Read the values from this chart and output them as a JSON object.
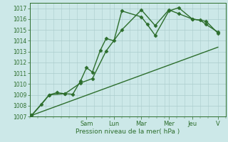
{
  "background_color": "#cce8e8",
  "grid_color": "#aacccc",
  "line_color": "#2d6e2d",
  "marker_color": "#2d6e2d",
  "xlabel": "Pression niveau de la mer( hPa )",
  "ylim": [
    1007,
    1017.5
  ],
  "yticks": [
    1007,
    1008,
    1009,
    1010,
    1011,
    1012,
    1013,
    1014,
    1015,
    1016,
    1017
  ],
  "day_labels": [
    "Sam",
    "Lun",
    "Mar",
    "Mer",
    "Jeu",
    "V"
  ],
  "day_x": [
    0.29,
    0.43,
    0.57,
    0.71,
    0.83,
    0.96
  ],
  "minor_x": [
    0.0,
    0.04,
    0.08,
    0.12,
    0.16,
    0.2,
    0.24,
    0.29,
    0.33,
    0.37,
    0.41,
    0.43,
    0.47,
    0.51,
    0.55,
    0.57,
    0.61,
    0.65,
    0.69,
    0.71,
    0.75,
    0.79,
    0.83,
    0.87,
    0.91,
    0.96,
    1.0
  ],
  "series": [
    {
      "x": [
        0.01,
        0.06,
        0.1,
        0.14,
        0.18,
        0.22,
        0.26,
        0.29,
        0.32,
        0.36,
        0.39,
        0.43,
        0.47,
        0.57,
        0.6,
        0.64,
        0.71,
        0.76,
        0.83,
        0.87,
        0.9,
        0.96
      ],
      "y": [
        1007.1,
        1008.1,
        1009.0,
        1009.2,
        1009.1,
        1009.05,
        1010.3,
        1011.5,
        1011.1,
        1013.1,
        1014.2,
        1014.0,
        1016.75,
        1016.2,
        1015.5,
        1014.5,
        1016.75,
        1017.05,
        1016.0,
        1015.9,
        1015.5,
        1014.8
      ],
      "marker": "D",
      "markersize": 2.5,
      "linewidth": 1.0
    },
    {
      "x": [
        0.01,
        0.1,
        0.18,
        0.26,
        0.32,
        0.39,
        0.47,
        0.57,
        0.64,
        0.71,
        0.76,
        0.83,
        0.9,
        0.96
      ],
      "y": [
        1007.1,
        1009.0,
        1009.1,
        1010.1,
        1010.5,
        1013.05,
        1015.0,
        1016.85,
        1015.4,
        1016.85,
        1016.5,
        1016.0,
        1015.8,
        1014.7
      ],
      "marker": "D",
      "markersize": 2.5,
      "linewidth": 1.0
    },
    {
      "x": [
        0.01,
        0.96
      ],
      "y": [
        1007.1,
        1013.4
      ],
      "marker": null,
      "markersize": 0,
      "linewidth": 1.0
    }
  ]
}
